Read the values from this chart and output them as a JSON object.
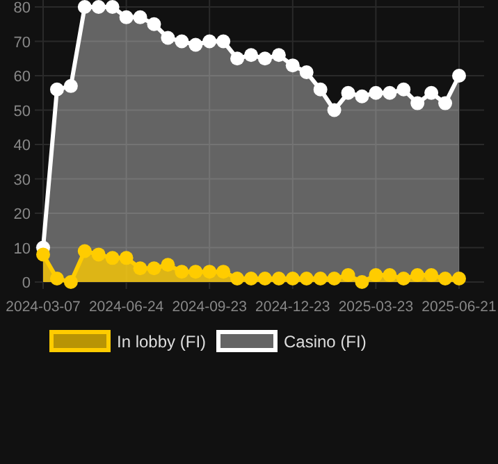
{
  "chart_data": {
    "type": "area",
    "categories": [
      "2024-03-07",
      null,
      null,
      null,
      null,
      null,
      "2024-06-24",
      null,
      null,
      null,
      null,
      null,
      "2024-09-23",
      null,
      null,
      null,
      null,
      null,
      "2024-12-23",
      null,
      null,
      null,
      null,
      null,
      "2025-03-23",
      null,
      null,
      null,
      null,
      null,
      "2025-06-21"
    ],
    "series": [
      {
        "name": "In lobby (FI)",
        "color": "#ffcc00",
        "values": [
          8,
          1,
          0,
          9,
          8,
          7,
          7,
          4,
          4,
          5,
          3,
          3,
          3,
          3,
          1,
          1,
          1,
          1,
          1,
          1,
          1,
          1,
          2,
          0,
          2,
          2,
          1,
          2,
          2,
          1,
          1
        ]
      },
      {
        "name": "Casino (FI)",
        "color": "#ffffff",
        "values": [
          10,
          56,
          57,
          80,
          80,
          80,
          77,
          77,
          75,
          71,
          70,
          69,
          70,
          70,
          65,
          66,
          65,
          66,
          63,
          61,
          56,
          50,
          55,
          54,
          55,
          55,
          56,
          52,
          55,
          52,
          60
        ]
      }
    ],
    "ylim": [
      0,
      80
    ],
    "yticks": [
      0,
      10,
      20,
      30,
      40,
      50,
      60,
      70,
      80
    ],
    "grid": true,
    "legend": "bottom",
    "marker": "circle"
  }
}
